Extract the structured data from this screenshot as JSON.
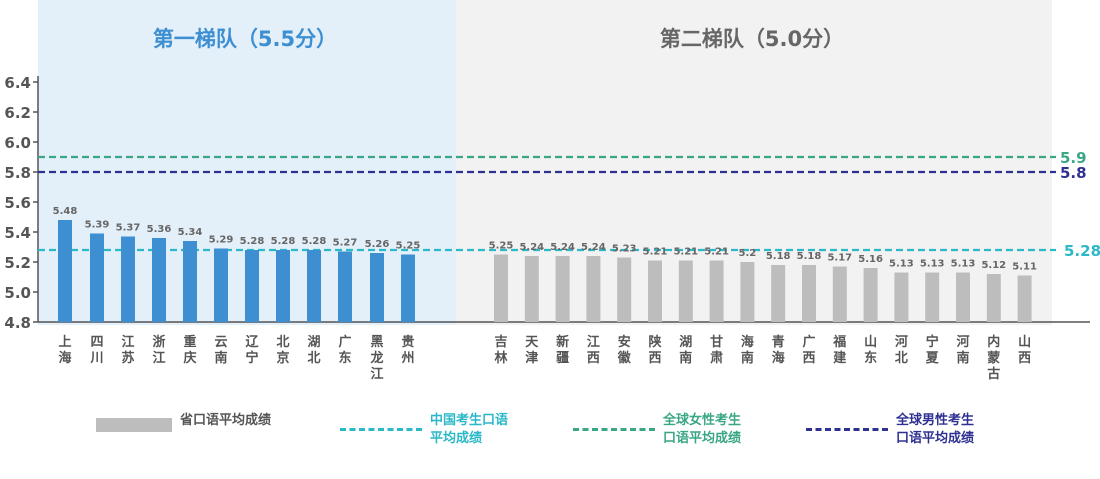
{
  "tiers": [
    {
      "label": "第一梯队（5.5分）",
      "color": "#3d8fd1"
    },
    {
      "label": "第二梯队（5.0分）",
      "color": "#666666"
    }
  ],
  "chart_data": {
    "type": "bar",
    "ylim": [
      4.8,
      6.4
    ],
    "yticks": [
      "4.8",
      "5.0",
      "5.2",
      "5.4",
      "5.6",
      "5.8",
      "6.0",
      "6.2",
      "6.4"
    ],
    "grid": false,
    "categories": [
      "上海",
      "四川",
      "江苏",
      "浙江",
      "重庆",
      "云南",
      "辽宁",
      "北京",
      "湖北",
      "广东",
      "黑龙江",
      "贵州",
      "吉林",
      "天津",
      "新疆",
      "江西",
      "安徽",
      "陕西",
      "湖南",
      "甘肃",
      "海南",
      "青海",
      "广西",
      "福建",
      "山东",
      "河北",
      "宁夏",
      "河南",
      "内蒙古",
      "山西"
    ],
    "values": [
      5.48,
      5.39,
      5.37,
      5.36,
      5.34,
      5.29,
      5.28,
      5.28,
      5.28,
      5.27,
      5.26,
      5.25,
      5.25,
      5.24,
      5.24,
      5.24,
      5.23,
      5.21,
      5.21,
      5.21,
      5.2,
      5.18,
      5.18,
      5.17,
      5.16,
      5.13,
      5.13,
      5.13,
      5.12,
      5.11
    ],
    "value_labels": [
      "5.48",
      "5.39",
      "5.37",
      "5.36",
      "5.34",
      "5.29",
      "5.28",
      "5.28",
      "5.28",
      "5.27",
      "5.26",
      "5.25",
      "5.25",
      "5.24",
      "5.24",
      "5.24",
      "5.23",
      "5.21",
      "5.21",
      "5.21",
      "5.2",
      "5.18",
      "5.18",
      "5.17",
      "5.16",
      "5.13",
      "5.13",
      "5.13",
      "5.12",
      "5.11"
    ],
    "tier_of_bar": [
      0,
      0,
      0,
      0,
      0,
      0,
      0,
      0,
      0,
      0,
      0,
      0,
      1,
      1,
      1,
      1,
      1,
      1,
      1,
      1,
      1,
      1,
      1,
      1,
      1,
      1,
      1,
      1,
      1,
      1
    ],
    "bar_colors": [
      "#3d8fd1",
      "#bdbdbd"
    ],
    "reference_lines": [
      {
        "value": 5.9,
        "label": "5.9",
        "color": "#3aa685"
      },
      {
        "value": 5.8,
        "label": "5.8",
        "color": "#2e3192"
      },
      {
        "value": 5.28,
        "label": "5.28",
        "color": "#2bb8c8"
      }
    ]
  },
  "legend": [
    {
      "text": "省口语平均成绩",
      "color": "#bdbdbd",
      "text_color": "#555555",
      "kind": "bar"
    },
    {
      "text": "中国考生口语\n平均成绩",
      "color": "#2bb8c8",
      "text_color": "#2bb8c8",
      "kind": "dash"
    },
    {
      "text": "全球女性考生\n口语平均成绩",
      "color": "#3aa685",
      "text_color": "#3aa685",
      "kind": "dash"
    },
    {
      "text": "全球男性考生\n口语平均成绩",
      "color": "#2e3192",
      "text_color": "#2e3192",
      "kind": "dash"
    }
  ]
}
